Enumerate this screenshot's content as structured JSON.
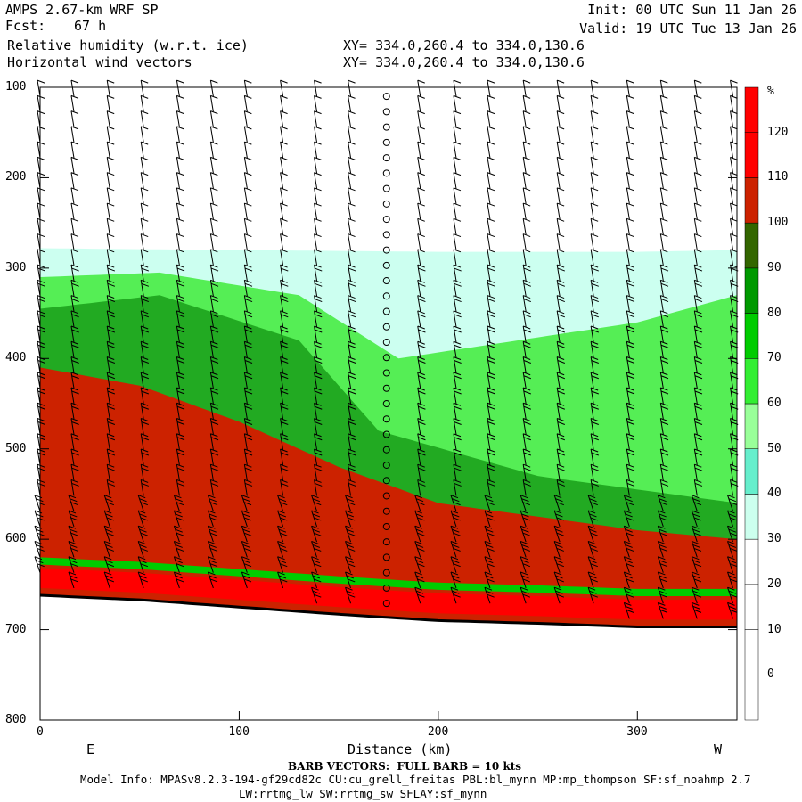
{
  "header": {
    "model": "AMPS 2.67-km WRF SP",
    "fcst_label": "Fcst:",
    "fcst_value": "67 h",
    "field1": "Relative humidity (w.r.t. ice)",
    "field2": "Horizontal wind vectors",
    "init": "Init: 00 UTC Sun 11 Jan 26",
    "valid": "Valid: 19 UTC Tue 13 Jan 26",
    "xy1": "XY= 334.0,260.4 to 334.0,130.6",
    "xy2": "XY= 334.0,260.4 to 334.0,130.6"
  },
  "footer": {
    "barb_note": "BARB VECTORS:  FULL BARB = 10 kts",
    "model_info": "Model Info: MPASv8.2.3-194-gf29cd82c CU:cu_grell_freitas PBL:bl_mynn MP:mp_thompson SF:sf_noahmp 2.7",
    "model_info2": "LW:rrtmg_lw SW:rrtmg_sw SFLAY:sf_mynn"
  },
  "chart_data": {
    "type": "heatmap",
    "title": "Relative humidity (w.r.t. ice)",
    "xlabel": "Distance (km)",
    "ylabel": "",
    "x_left_label": "E",
    "x_right_label": "W",
    "xlim": [
      0,
      350
    ],
    "ylim": [
      800,
      100
    ],
    "x_ticks": [
      0,
      100,
      200,
      300
    ],
    "y_ticks": [
      100,
      200,
      300,
      400,
      500,
      600,
      700,
      800
    ],
    "colorbar": {
      "unit": "%",
      "levels": [
        0,
        10,
        20,
        30,
        40,
        50,
        60,
        70,
        80,
        90,
        100,
        110,
        120
      ],
      "colors": [
        "#ffffff",
        "#ffffff",
        "#ffffff",
        "#ffffff",
        "#ccffee",
        "#66eecc",
        "#99ff99",
        "#33ee33",
        "#00cc00",
        "#009900",
        "#336600",
        "#cc2200",
        "#ff0000"
      ]
    },
    "terrain_pressure_hPa": {
      "x_km": [
        0,
        50,
        100,
        150,
        200,
        250,
        300,
        350
      ],
      "p": [
        662,
        667,
        675,
        683,
        690,
        693,
        697,
        697
      ]
    },
    "rh_bands_hPa": [
      {
        "rh_min": 30,
        "top_at_x": {
          "x_km": [
            0,
            100,
            200,
            300,
            350
          ],
          "p": [
            278,
            280,
            282,
            282,
            280
          ]
        }
      },
      {
        "rh_min": 70,
        "top_at_x": {
          "x_km": [
            0,
            60,
            130,
            180,
            240,
            300,
            350
          ],
          "p": [
            310,
            305,
            330,
            400,
            380,
            360,
            330
          ]
        }
      },
      {
        "rh_min": 90,
        "top_at_x": {
          "x_km": [
            0,
            60,
            130,
            170,
            250,
            350
          ],
          "p": [
            345,
            330,
            380,
            480,
            530,
            560
          ]
        }
      },
      {
        "rh_min": 110,
        "top_at_x": {
          "x_km": [
            0,
            50,
            100,
            150,
            200,
            300,
            350
          ],
          "p": [
            410,
            430,
            470,
            520,
            560,
            590,
            600
          ]
        }
      }
    ],
    "wind_barb_columns_km": [
      0,
      17,
      35,
      52,
      70,
      87,
      104,
      122,
      139,
      156,
      174,
      191,
      209,
      226,
      244,
      261,
      278,
      296,
      313,
      330,
      348
    ],
    "calm_column_km": 174
  }
}
